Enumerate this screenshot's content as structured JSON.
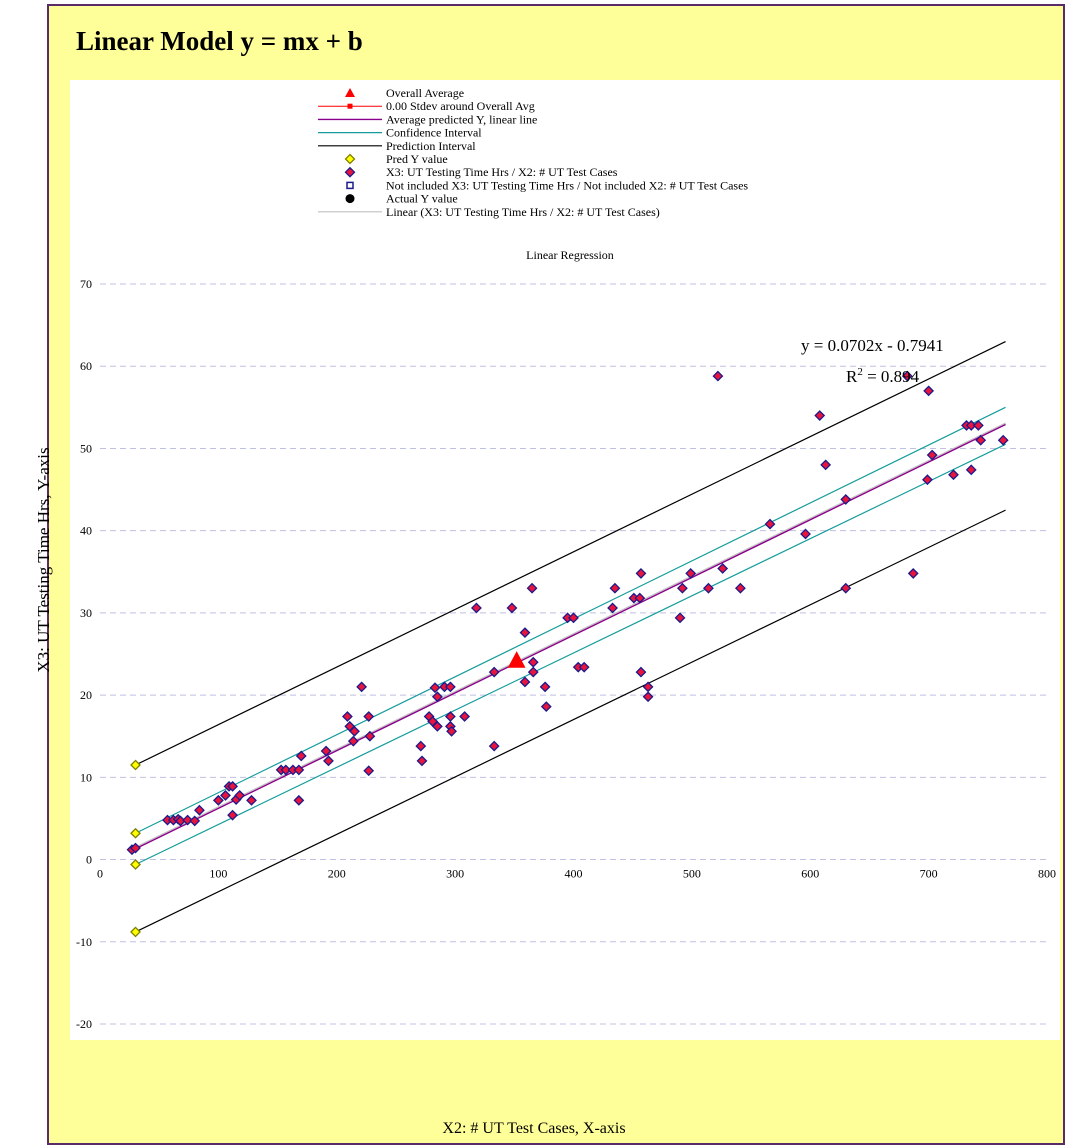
{
  "header": {
    "title": "Linear Model y = mx + b"
  },
  "chart_data": {
    "type": "scatter",
    "title": "Linear Regression",
    "xlabel": "X2: # UT Test Cases, X-axis",
    "ylabel": "X3: UT Testing Time Hrs, Y-axis",
    "xlim": [
      0,
      800
    ],
    "ylim": [
      -20,
      70
    ],
    "x_ticks": [
      0,
      100,
      200,
      300,
      400,
      500,
      600,
      700,
      800
    ],
    "y_ticks": [
      -20,
      -10,
      0,
      10,
      20,
      30,
      40,
      50,
      60,
      70
    ],
    "grid": "horizontal dashed",
    "legend_placement": "top-center",
    "equation": "y = 0.0702x - 0.7941",
    "r_squared_prefix": "R",
    "r_squared_value": " = 0.894",
    "colors": {
      "scatter_fill": "#e8143c",
      "scatter_edge": "#1b1a8c",
      "average_marker": "#ff0000",
      "avg_predicted_line": "#8b008b",
      "confidence_line": "#169c9c",
      "prediction_line": "#000000",
      "pred_y_fill": "#ffff00",
      "pred_y_edge": "#7f7f00",
      "trend_line": "#c0c0c0",
      "grid": "#c0c0e0"
    },
    "legend": [
      {
        "label": "Overall Average",
        "marker": "triangle"
      },
      {
        "label": "0.00 Stdev around Overall Avg",
        "marker": "red-line-square"
      },
      {
        "label": "Average predicted Y, linear line",
        "marker": "purple-line"
      },
      {
        "label": "Confidence Interval",
        "marker": "teal-line"
      },
      {
        "label": "Prediction Interval",
        "marker": "black-line"
      },
      {
        "label": "Pred Y value",
        "marker": "yellow-diamond"
      },
      {
        "label": "X3: UT Testing Time Hrs / X2: # UT Test Cases",
        "marker": "red-diamond"
      },
      {
        "label": "Not included X3: UT Testing Time Hrs / Not included X2: # UT Test Cases",
        "marker": "blue-square"
      },
      {
        "label": "Actual Y value",
        "marker": "black-circle"
      },
      {
        "label": "Linear (X3: UT Testing Time Hrs / X2: # UT Test Cases)",
        "marker": "gray-line"
      }
    ],
    "overall_average": {
      "x": 352,
      "y": 24
    },
    "regression": {
      "slope": 0.0702,
      "intercept": -0.7941,
      "x_range": [
        30,
        765
      ]
    },
    "confidence_interval": {
      "upper": [
        [
          30,
          3.2
        ],
        [
          765,
          55.0
        ]
      ],
      "lower": [
        [
          30,
          -0.6
        ],
        [
          765,
          50.5
        ]
      ]
    },
    "prediction_interval": {
      "upper": [
        [
          30,
          11.5
        ],
        [
          765,
          63.0
        ]
      ],
      "lower": [
        [
          30,
          -8.8
        ],
        [
          765,
          42.5
        ]
      ]
    },
    "pred_y_values": [
      {
        "x": 30,
        "y": 11.5
      },
      {
        "x": 30,
        "y": 3.2
      },
      {
        "x": 30,
        "y": -0.6
      },
      {
        "x": 30,
        "y": -8.8
      }
    ],
    "series": [
      {
        "name": "X3: UT Testing Time Hrs / X2: # UT Test Cases",
        "points": [
          [
            27,
            1.2
          ],
          [
            30,
            1.4
          ],
          [
            57,
            4.8
          ],
          [
            62,
            4.8
          ],
          [
            66,
            4.9
          ],
          [
            68,
            4.7
          ],
          [
            74,
            4.8
          ],
          [
            80,
            4.7
          ],
          [
            84,
            6.0
          ],
          [
            100,
            7.2
          ],
          [
            106,
            7.8
          ],
          [
            109,
            8.9
          ],
          [
            112,
            8.9
          ],
          [
            115,
            7.3
          ],
          [
            118,
            7.8
          ],
          [
            112,
            5.4
          ],
          [
            128,
            7.2
          ],
          [
            153,
            10.9
          ],
          [
            157,
            10.9
          ],
          [
            163,
            10.9
          ],
          [
            168,
            10.9
          ],
          [
            170,
            12.6
          ],
          [
            168,
            7.2
          ],
          [
            191,
            13.2
          ],
          [
            193,
            12.0
          ],
          [
            209,
            17.4
          ],
          [
            211,
            16.2
          ],
          [
            214,
            14.4
          ],
          [
            215,
            15.6
          ],
          [
            221,
            21.0
          ],
          [
            227,
            17.4
          ],
          [
            228,
            15.0
          ],
          [
            227,
            10.8
          ],
          [
            271,
            13.8
          ],
          [
            272,
            12.0
          ],
          [
            278,
            17.4
          ],
          [
            281,
            16.8
          ],
          [
            283,
            20.9
          ],
          [
            285,
            16.2
          ],
          [
            285,
            19.8
          ],
          [
            291,
            21.0
          ],
          [
            296,
            21.0
          ],
          [
            296,
            17.4
          ],
          [
            296,
            16.2
          ],
          [
            297,
            15.6
          ],
          [
            308,
            17.4
          ],
          [
            318,
            30.6
          ],
          [
            333,
            22.8
          ],
          [
            333,
            13.8
          ],
          [
            348,
            30.6
          ],
          [
            359,
            27.6
          ],
          [
            359,
            21.6
          ],
          [
            365,
            33.0
          ],
          [
            366,
            24.0
          ],
          [
            366,
            22.8
          ],
          [
            376,
            21.0
          ],
          [
            377,
            18.6
          ],
          [
            395,
            29.4
          ],
          [
            400,
            29.4
          ],
          [
            404,
            23.4
          ],
          [
            409,
            23.4
          ],
          [
            433,
            30.6
          ],
          [
            435,
            33.0
          ],
          [
            451,
            31.8
          ],
          [
            456,
            31.8
          ],
          [
            457,
            34.8
          ],
          [
            457,
            22.8
          ],
          [
            463,
            21.0
          ],
          [
            463,
            19.8
          ],
          [
            490,
            29.4
          ],
          [
            492,
            33.0
          ],
          [
            499,
            34.8
          ],
          [
            514,
            33.0
          ],
          [
            522,
            58.8
          ],
          [
            526,
            35.4
          ],
          [
            541,
            33.0
          ],
          [
            566,
            40.8
          ],
          [
            596,
            39.6
          ],
          [
            608,
            54.0
          ],
          [
            613,
            48.0
          ],
          [
            630,
            43.8
          ],
          [
            630,
            33.0
          ],
          [
            682,
            58.8
          ],
          [
            687,
            34.8
          ],
          [
            699,
            46.2
          ],
          [
            700,
            57.0
          ],
          [
            703,
            49.2
          ],
          [
            721,
            46.8
          ],
          [
            732,
            52.8
          ],
          [
            736,
            52.8
          ],
          [
            736,
            47.4
          ],
          [
            742,
            52.8
          ],
          [
            744,
            51.0
          ],
          [
            763,
            51.0
          ]
        ]
      }
    ]
  }
}
